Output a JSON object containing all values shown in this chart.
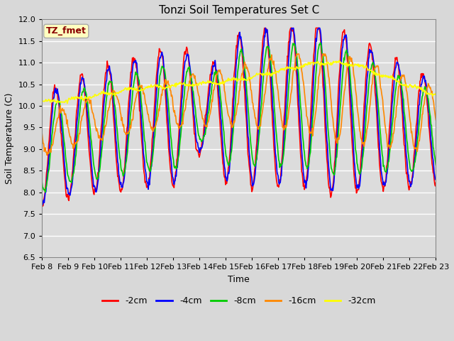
{
  "title": "Tonzi Soil Temperatures Set C",
  "xlabel": "Time",
  "ylabel": "Soil Temperature (C)",
  "ylim": [
    6.5,
    12.0
  ],
  "annotation": "TZ_fmet",
  "series_labels": [
    "-2cm",
    "-4cm",
    "-8cm",
    "-16cm",
    "-32cm"
  ],
  "series_colors": [
    "#ff0000",
    "#0000ff",
    "#00cc00",
    "#ff8800",
    "#ffff00"
  ],
  "line_width": 1.2,
  "x_tick_labels": [
    "Feb 8",
    "Feb 9",
    "Feb 10",
    "Feb 11",
    "Feb 12",
    "Feb 13",
    "Feb 14",
    "Feb 15",
    "Feb 16",
    "Feb 17",
    "Feb 18",
    "Feb 19",
    "Feb 20",
    "Feb 21",
    "Feb 22",
    "Feb 23"
  ],
  "bg_color": "#dcdcdc",
  "plot_bg_color": "#dcdcdc",
  "n_points": 720,
  "n_days": 15,
  "figsize": [
    6.4,
    4.8
  ],
  "dpi": 100
}
